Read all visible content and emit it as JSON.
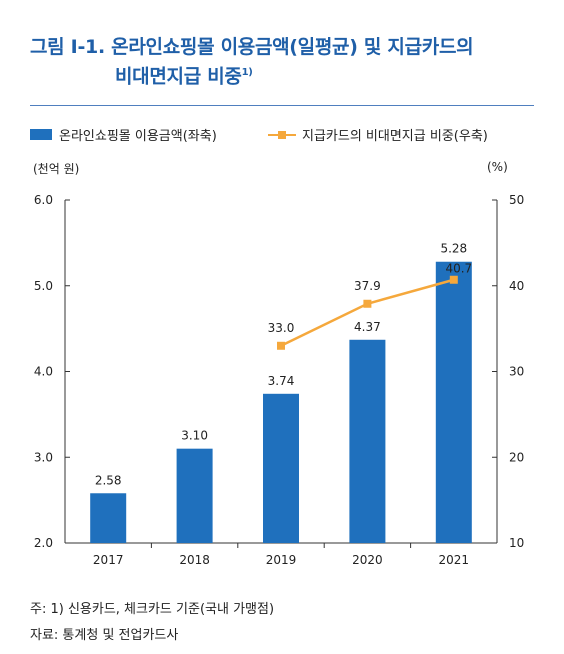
{
  "header": {
    "title_line1": "그림 I-1. 온라인쇼핑몰 이용금액(일평균) 및 지급카드의",
    "title_line2": "비대면지급 비중",
    "title_footnote_mark": "1)"
  },
  "legend": {
    "bar_label": "온라인쇼핑몰 이용금액(좌축)",
    "line_label": "지급카드의 비대면지급 비중(우축)"
  },
  "axes": {
    "left_unit": "(천억 원)",
    "right_unit": "(%)"
  },
  "colors": {
    "title": "#1f5fa8",
    "bar": "#1f70bd",
    "line": "#f5a83c"
  },
  "chart_data": {
    "type": "bar",
    "categories": [
      "2017",
      "2018",
      "2019",
      "2020",
      "2021"
    ],
    "series": [
      {
        "name": "온라인쇼핑몰 이용금액(좌축)",
        "type": "bar",
        "axis": "left",
        "values": [
          2.58,
          3.1,
          3.74,
          4.37,
          5.28
        ],
        "labels": [
          "2.58",
          "3.10",
          "3.74",
          "4.37",
          "5.28"
        ]
      },
      {
        "name": "지급카드의 비대면지급 비중(우축)",
        "type": "line",
        "axis": "right",
        "values": [
          null,
          null,
          33.0,
          37.9,
          40.7
        ],
        "labels": [
          "",
          "",
          "33.0",
          "37.9",
          "40.7"
        ]
      }
    ],
    "y_left": {
      "ylim": [
        2.0,
        6.0
      ],
      "ticks": [
        "2.0",
        "3.0",
        "4.0",
        "5.0",
        "6.0"
      ]
    },
    "y_right": {
      "ylim": [
        10,
        50
      ],
      "ticks": [
        "10",
        "20",
        "30",
        "40",
        "50"
      ]
    },
    "grid": false,
    "legend_position": "top"
  },
  "footnotes": {
    "note": "주: 1) 신용카드, 체크카드 기준(국내 가맹점)",
    "source": "자료: 통계청 및 전업카드사"
  }
}
